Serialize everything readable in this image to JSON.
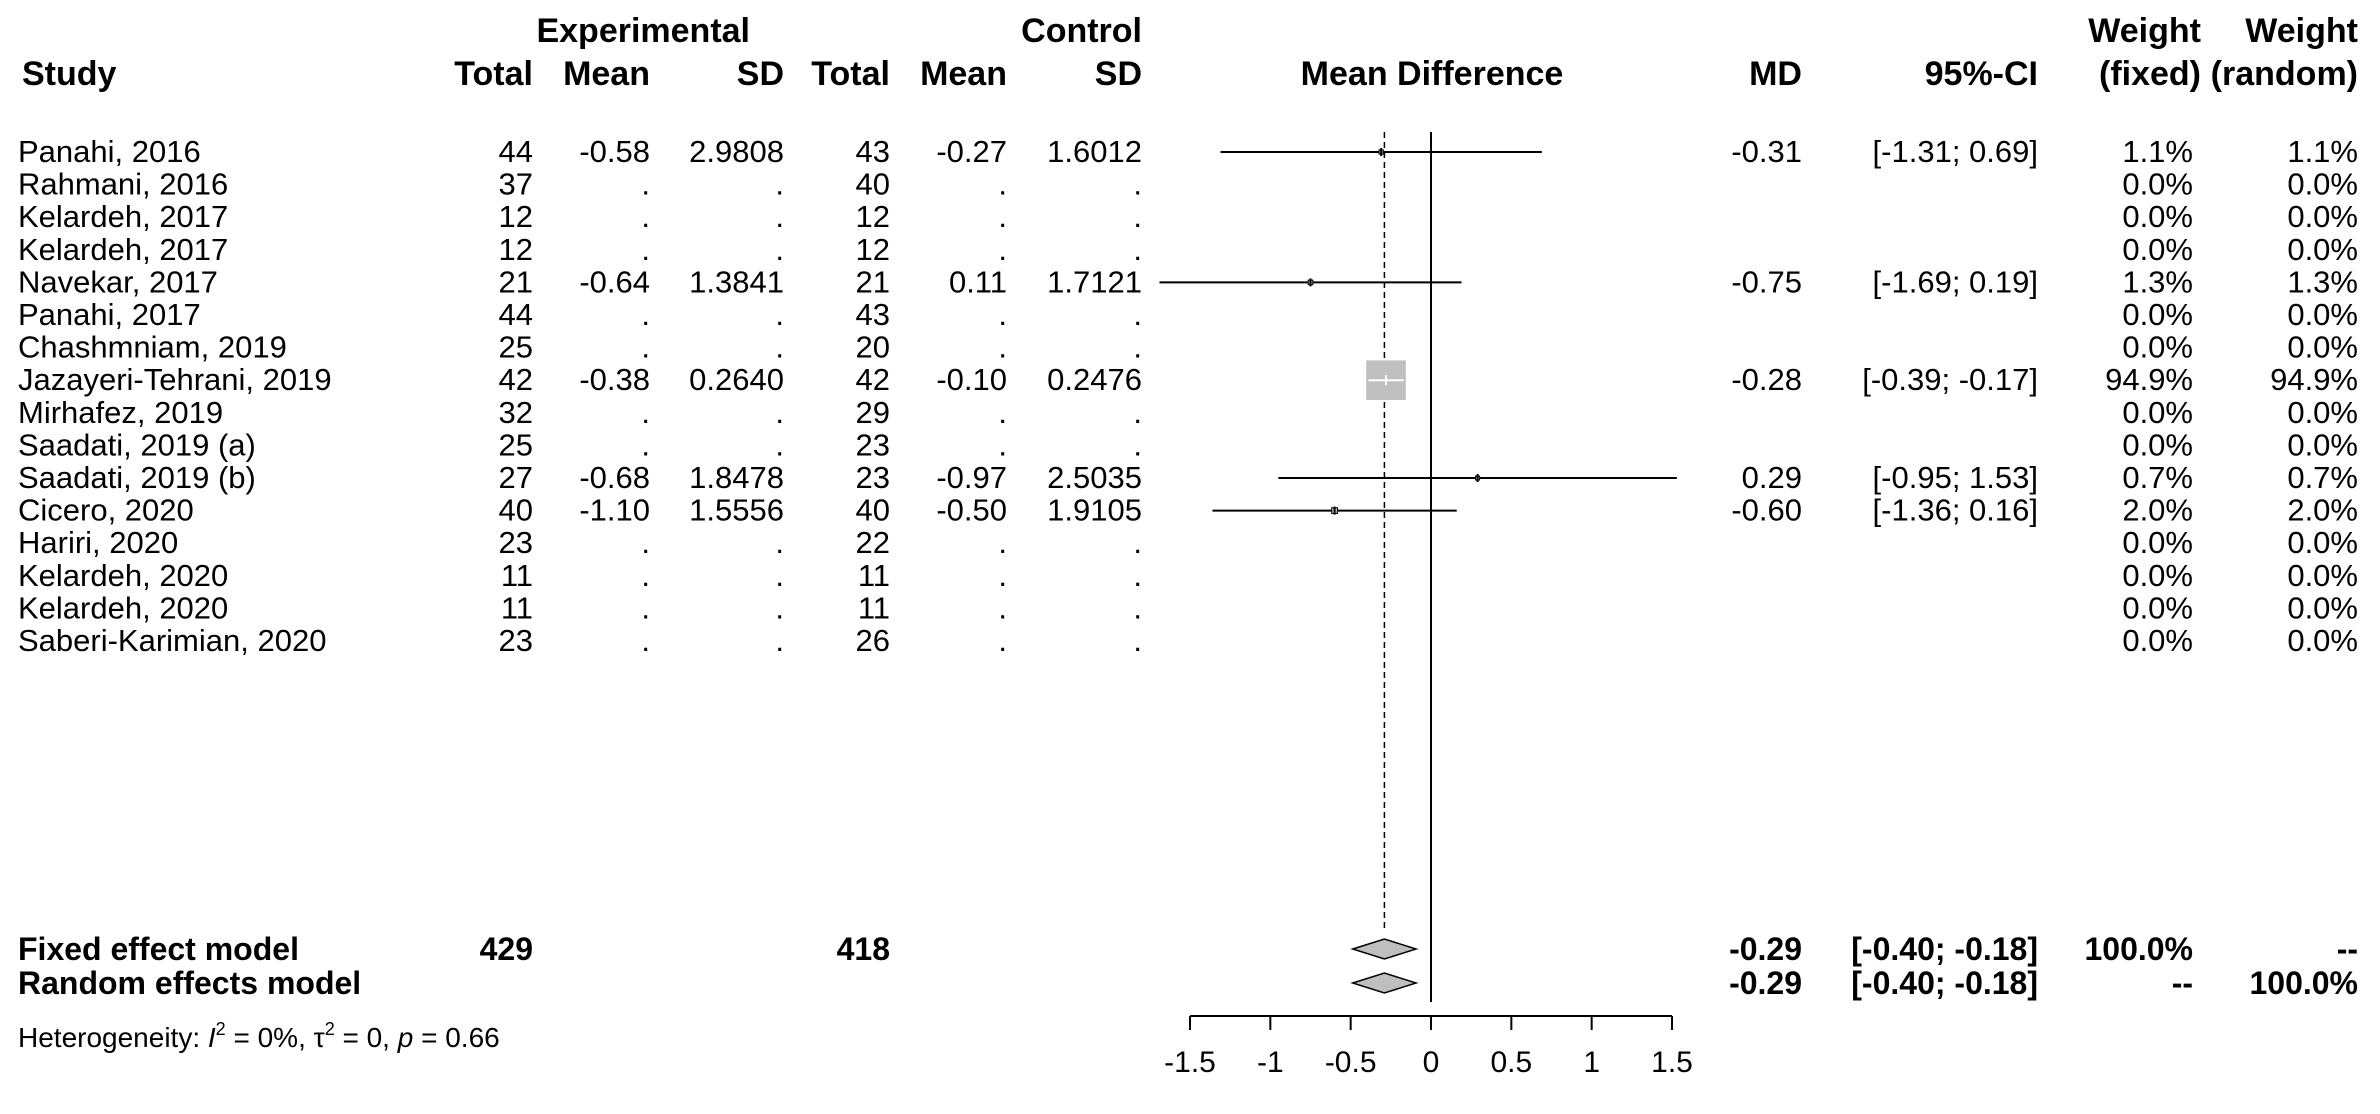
{
  "headers": {
    "experimental": "Experimental",
    "control": "Control",
    "study": "Study",
    "exp_total": "Total",
    "exp_mean": "Mean",
    "exp_sd": "SD",
    "ctl_total": "Total",
    "ctl_mean": "Mean",
    "ctl_sd": "SD",
    "mean_difference": "Mean Difference",
    "md": "MD",
    "ci": "95%-CI",
    "weight1": "Weight",
    "weight1b": "(fixed)",
    "weight2": "Weight",
    "weight2b": "(random)"
  },
  "studies": [
    {
      "study": "Panahi, 2016",
      "e_total": "44",
      "e_mean": "-0.58",
      "e_sd": "2.9808",
      "c_total": "43",
      "c_mean": "-0.27",
      "c_sd": "1.6012",
      "md": "-0.31",
      "ci": "[-1.31; 0.69]",
      "w_fixed": "1.1%",
      "w_random": "1.1%"
    },
    {
      "study": "Rahmani, 2016",
      "e_total": "37",
      "e_mean": ".",
      "e_sd": ".",
      "c_total": "40",
      "c_mean": ".",
      "c_sd": ".",
      "md": "",
      "ci": "",
      "w_fixed": "0.0%",
      "w_random": "0.0%"
    },
    {
      "study": "Kelardeh, 2017",
      "e_total": "12",
      "e_mean": ".",
      "e_sd": ".",
      "c_total": "12",
      "c_mean": ".",
      "c_sd": ".",
      "md": "",
      "ci": "",
      "w_fixed": "0.0%",
      "w_random": "0.0%"
    },
    {
      "study": "Kelardeh, 2017",
      "e_total": "12",
      "e_mean": ".",
      "e_sd": ".",
      "c_total": "12",
      "c_mean": ".",
      "c_sd": ".",
      "md": "",
      "ci": "",
      "w_fixed": "0.0%",
      "w_random": "0.0%"
    },
    {
      "study": "Navekar, 2017",
      "e_total": "21",
      "e_mean": "-0.64",
      "e_sd": "1.3841",
      "c_total": "21",
      "c_mean": "0.11",
      "c_sd": "1.7121",
      "md": "-0.75",
      "ci": "[-1.69; 0.19]",
      "w_fixed": "1.3%",
      "w_random": "1.3%"
    },
    {
      "study": "Panahi, 2017",
      "e_total": "44",
      "e_mean": ".",
      "e_sd": ".",
      "c_total": "43",
      "c_mean": ".",
      "c_sd": ".",
      "md": "",
      "ci": "",
      "w_fixed": "0.0%",
      "w_random": "0.0%"
    },
    {
      "study": "Chashmniam, 2019",
      "e_total": "25",
      "e_mean": ".",
      "e_sd": ".",
      "c_total": "20",
      "c_mean": ".",
      "c_sd": ".",
      "md": "",
      "ci": "",
      "w_fixed": "0.0%",
      "w_random": "0.0%"
    },
    {
      "study": "Jazayeri-Tehrani, 2019",
      "e_total": "42",
      "e_mean": "-0.38",
      "e_sd": "0.2640",
      "c_total": "42",
      "c_mean": "-0.10",
      "c_sd": "0.2476",
      "md": "-0.28",
      "ci": "[-0.39; -0.17]",
      "w_fixed": "94.9%",
      "w_random": "94.9%"
    },
    {
      "study": "Mirhafez, 2019",
      "e_total": "32",
      "e_mean": ".",
      "e_sd": ".",
      "c_total": "29",
      "c_mean": ".",
      "c_sd": ".",
      "md": "",
      "ci": "",
      "w_fixed": "0.0%",
      "w_random": "0.0%"
    },
    {
      "study": "Saadati, 2019 (a)",
      "e_total": "25",
      "e_mean": ".",
      "e_sd": ".",
      "c_total": "23",
      "c_mean": ".",
      "c_sd": ".",
      "md": "",
      "ci": "",
      "w_fixed": "0.0%",
      "w_random": "0.0%"
    },
    {
      "study": "Saadati, 2019 (b)",
      "e_total": "27",
      "e_mean": "-0.68",
      "e_sd": "1.8478",
      "c_total": "23",
      "c_mean": "-0.97",
      "c_sd": "2.5035",
      "md": "0.29",
      "ci": "[-0.95; 1.53]",
      "w_fixed": "0.7%",
      "w_random": "0.7%"
    },
    {
      "study": "Cicero, 2020",
      "e_total": "40",
      "e_mean": "-1.10",
      "e_sd": "1.5556",
      "c_total": "40",
      "c_mean": "-0.50",
      "c_sd": "1.9105",
      "md": "-0.60",
      "ci": "[-1.36; 0.16]",
      "w_fixed": "2.0%",
      "w_random": "2.0%"
    },
    {
      "study": "Hariri, 2020",
      "e_total": "23",
      "e_mean": ".",
      "e_sd": ".",
      "c_total": "22",
      "c_mean": ".",
      "c_sd": ".",
      "md": "",
      "ci": "",
      "w_fixed": "0.0%",
      "w_random": "0.0%"
    },
    {
      "study": "Kelardeh, 2020",
      "e_total": "11",
      "e_mean": ".",
      "e_sd": ".",
      "c_total": "11",
      "c_mean": ".",
      "c_sd": ".",
      "md": "",
      "ci": "",
      "w_fixed": "0.0%",
      "w_random": "0.0%"
    },
    {
      "study": "Kelardeh, 2020",
      "e_total": "11",
      "e_mean": ".",
      "e_sd": ".",
      "c_total": "11",
      "c_mean": ".",
      "c_sd": ".",
      "md": "",
      "ci": "",
      "w_fixed": "0.0%",
      "w_random": "0.0%"
    },
    {
      "study": "Saberi-Karimian, 2020",
      "e_total": "23",
      "e_mean": ".",
      "e_sd": ".",
      "c_total": "26",
      "c_mean": ".",
      "c_sd": ".",
      "md": "",
      "ci": "",
      "w_fixed": "0.0%",
      "w_random": "0.0%"
    }
  ],
  "summary": [
    {
      "label": "Fixed effect model",
      "e_total": "429",
      "c_total": "418",
      "md": "-0.29",
      "ci": "[-0.40; -0.18]",
      "w_fixed": "100.0%",
      "w_random": "--"
    },
    {
      "label": "Random effects model",
      "e_total": "",
      "c_total": "",
      "md": "-0.29",
      "ci": "[-0.40; -0.18]",
      "w_fixed": "--",
      "w_random": "100.0%"
    }
  ],
  "heterogeneity": {
    "prefix": "Heterogeneity: ",
    "i2_symbol": "I",
    "i2_value": " = 0%, ",
    "tau_symbol": "τ",
    "tau_value": " = 0, ",
    "p_symbol": "p",
    "p_value": " = 0.66",
    "superscript": "2"
  },
  "chart_data": {
    "type": "forest",
    "xlim": [
      -1.5,
      1.5
    ],
    "ticks": [
      -1.5,
      -1,
      -0.5,
      0,
      0.5,
      1,
      1.5
    ],
    "tick_labels": [
      "-1.5",
      "-1",
      "-0.5",
      "0",
      "0.5",
      "1",
      "1.5"
    ],
    "null_line": 0,
    "pooled_line": -0.29,
    "studies": [
      {
        "md": -0.31,
        "lower": -1.31,
        "upper": 0.69,
        "weight": 1.1,
        "row": 0
      },
      {
        "md": -0.75,
        "lower": -1.69,
        "upper": 0.19,
        "weight": 1.3,
        "row": 4
      },
      {
        "md": -0.28,
        "lower": -0.39,
        "upper": -0.17,
        "weight": 94.9,
        "row": 7
      },
      {
        "md": 0.29,
        "lower": -0.95,
        "upper": 1.53,
        "weight": 0.7,
        "row": 10
      },
      {
        "md": -0.6,
        "lower": -1.36,
        "upper": 0.16,
        "weight": 2.0,
        "row": 11
      }
    ],
    "pooled": [
      {
        "model": "fixed",
        "md": -0.29,
        "lower": -0.4,
        "upper": -0.18
      },
      {
        "model": "random",
        "md": -0.29,
        "lower": -0.4,
        "upper": -0.18
      }
    ],
    "square_color": "#bfbfbf",
    "diamond_color": "#bfbfbf"
  }
}
